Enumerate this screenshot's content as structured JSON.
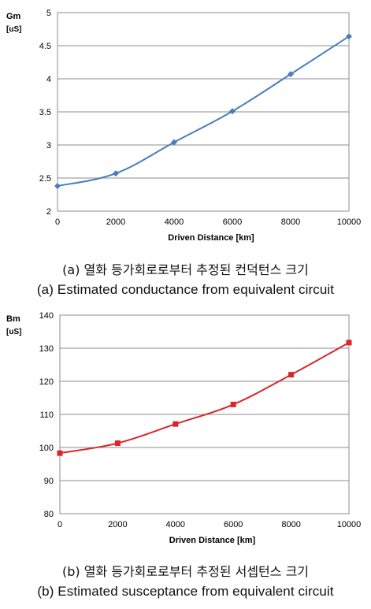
{
  "chart_data": [
    {
      "type": "line",
      "ylabel_main": "Gm",
      "ylabel_unit": "[uS]",
      "xlabel": "Driven Distance [km]",
      "x": [
        0,
        2000,
        4000,
        6000,
        8000,
        10000
      ],
      "series": [
        {
          "values": [
            2.38,
            2.57,
            3.04,
            3.51,
            4.07,
            4.64
          ]
        }
      ],
      "xlim": [
        0,
        10000
      ],
      "ylim": [
        2,
        5
      ],
      "xticks": [
        "0",
        "2000",
        "4000",
        "6000",
        "8000",
        "10000"
      ],
      "yticks": [
        "2",
        "2.5",
        "3",
        "3.5",
        "4",
        "4.5",
        "5"
      ],
      "grid": "horizontal",
      "color": "#4a7ebb",
      "marker": "diamond",
      "caption_ko": "(a) 열화 등가회로로부터 추정된 컨덕턴스 크기",
      "caption_en": "(a) Estimated conductance from equivalent circuit"
    },
    {
      "type": "line",
      "ylabel_main": "Bm",
      "ylabel_unit": "[uS]",
      "xlabel": "Driven Distance [km]",
      "x": [
        0,
        2000,
        4000,
        6000,
        8000,
        10000
      ],
      "series": [
        {
          "values": [
            98.3,
            101.3,
            107.1,
            113.0,
            122.0,
            131.7
          ]
        }
      ],
      "xlim": [
        0,
        10000
      ],
      "ylim": [
        80,
        140
      ],
      "xticks": [
        "0",
        "2000",
        "4000",
        "6000",
        "8000",
        "10000"
      ],
      "yticks": [
        "80",
        "90",
        "100",
        "110",
        "120",
        "130",
        "140"
      ],
      "grid": "horizontal",
      "color": "#d9262b",
      "marker": "square",
      "caption_ko": "(b) 열화 등가회로로부터 추정된 서셉턴스 크기",
      "caption_en": "(b) Estimated susceptance from equivalent circuit"
    }
  ]
}
